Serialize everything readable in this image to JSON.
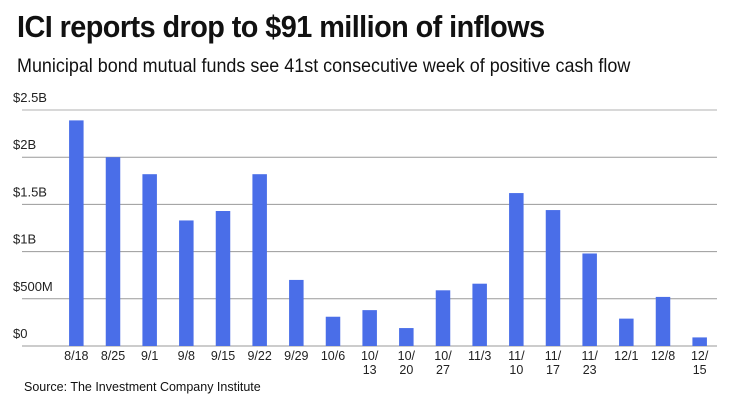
{
  "header": {
    "title": "ICI reports drop to $91 million of inflows",
    "subtitle": "Municipal bond mutual funds see 41st consecutive week of positive cash flow"
  },
  "footer": {
    "source": "Source: The Investment Company Institute"
  },
  "chart_data": {
    "type": "bar",
    "title": "ICI reports drop to $91 million of inflows",
    "subtitle": "Municipal bond mutual funds see 41st consecutive week of positive cash flow",
    "xlabel": "",
    "ylabel": "",
    "units": "USD billions",
    "categories": [
      "8/18",
      "8/25",
      "9/1",
      "9/8",
      "9/15",
      "9/22",
      "9/29",
      "10/6",
      "10/13",
      "10/20",
      "10/27",
      "11/3",
      "11/10",
      "11/17",
      "11/23",
      "12/1",
      "12/8",
      "12/15"
    ],
    "category_label_lines": [
      [
        "8/18"
      ],
      [
        "8/25"
      ],
      [
        "9/1"
      ],
      [
        "9/8"
      ],
      [
        "9/15"
      ],
      [
        "9/22"
      ],
      [
        "9/29"
      ],
      [
        "10/6"
      ],
      [
        "10/",
        "13"
      ],
      [
        "10/",
        "20"
      ],
      [
        "10/",
        "27"
      ],
      [
        "11/3"
      ],
      [
        "11/",
        "10"
      ],
      [
        "11/",
        "17"
      ],
      [
        "11/",
        "23"
      ],
      [
        "12/1"
      ],
      [
        "12/8"
      ],
      [
        "12/",
        "15"
      ]
    ],
    "values": [
      2.39,
      2.0,
      1.82,
      1.33,
      1.43,
      1.82,
      0.7,
      0.31,
      0.38,
      0.19,
      0.59,
      0.66,
      1.62,
      1.44,
      0.98,
      0.29,
      0.52,
      0.091
    ],
    "ylim": [
      0,
      2.5
    ],
    "yticks": [
      0,
      0.5,
      1,
      1.5,
      2,
      2.5
    ],
    "ytick_labels": [
      "$0",
      "$500M",
      "$1B",
      "$1.5B",
      "$2B",
      "$2.5B"
    ],
    "grid": true,
    "legend": "none",
    "bar_color": "#4a6ee8",
    "grid_color": "#9a9a9a"
  },
  "source": "Source: The Investment Company Institute"
}
